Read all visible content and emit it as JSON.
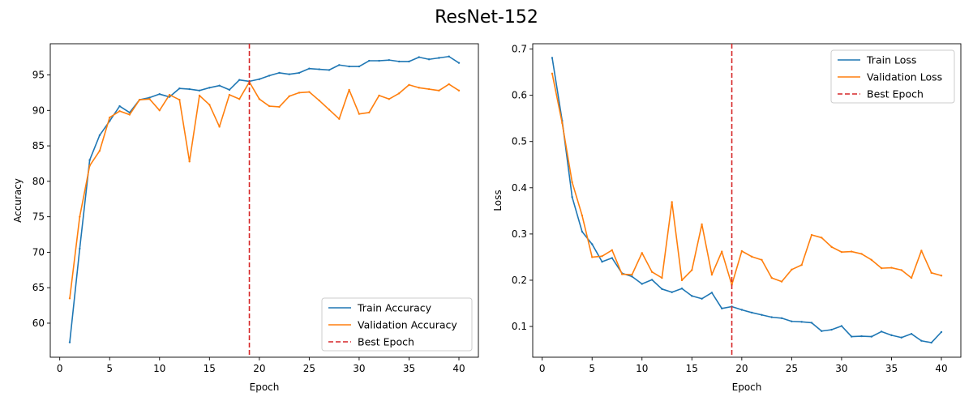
{
  "figure": {
    "title": "ResNet-152"
  },
  "chart_data": [
    {
      "type": "line",
      "xlabel": "Epoch",
      "ylabel": "Accuracy",
      "xlim": [
        -0.95,
        41.95
      ],
      "ylim": [
        55.2,
        99.4
      ],
      "xticks": [
        0,
        5,
        10,
        15,
        20,
        25,
        30,
        35,
        40
      ],
      "yticks": [
        60,
        65,
        70,
        75,
        80,
        85,
        90,
        95
      ],
      "grid": false,
      "legend_position": "lower-right",
      "x": [
        1,
        2,
        3,
        4,
        5,
        6,
        7,
        8,
        9,
        10,
        11,
        12,
        13,
        14,
        15,
        16,
        17,
        18,
        19,
        20,
        21,
        22,
        23,
        24,
        25,
        26,
        27,
        28,
        29,
        30,
        31,
        32,
        33,
        34,
        35,
        36,
        37,
        38,
        39,
        40
      ],
      "series": [
        {
          "name": "Train Accuracy",
          "color": "#1f77b4",
          "style": "solid",
          "values": [
            57.3,
            70.5,
            83.0,
            86.5,
            88.5,
            90.6,
            89.7,
            91.5,
            91.8,
            92.3,
            91.9,
            93.1,
            93.0,
            92.8,
            93.2,
            93.5,
            92.9,
            94.3,
            94.1,
            94.4,
            94.9,
            95.3,
            95.1,
            95.3,
            95.9,
            95.8,
            95.7,
            96.4,
            96.2,
            96.2,
            97.0,
            97.0,
            97.1,
            96.9,
            96.9,
            97.5,
            97.2,
            97.4,
            97.6,
            96.7
          ]
        },
        {
          "name": "Validation Accuracy",
          "color": "#ff7f0e",
          "style": "solid",
          "values": [
            63.5,
            75.0,
            82.2,
            84.3,
            89.0,
            89.9,
            89.4,
            91.5,
            91.6,
            90.0,
            92.2,
            91.5,
            82.8,
            92.1,
            90.8,
            87.7,
            92.2,
            91.6,
            94.0,
            91.6,
            90.6,
            90.5,
            92.0,
            92.5,
            92.6,
            91.4,
            90.1,
            88.8,
            92.9,
            89.5,
            89.7,
            92.1,
            91.6,
            92.4,
            93.6,
            93.2,
            93.0,
            92.8,
            93.7,
            92.8
          ]
        }
      ],
      "vlines": [
        {
          "name": "Best Epoch",
          "x": 19,
          "color": "#d62728",
          "style": "dashed"
        }
      ]
    },
    {
      "type": "line",
      "xlabel": "Epoch",
      "ylabel": "Loss",
      "xlim": [
        -0.95,
        41.95
      ],
      "ylim": [
        0.0335,
        0.7115
      ],
      "xticks": [
        0,
        5,
        10,
        15,
        20,
        25,
        30,
        35,
        40
      ],
      "yticks": [
        0.1,
        0.2,
        0.3,
        0.4,
        0.5,
        0.6,
        0.7
      ],
      "grid": false,
      "legend_position": "upper-right",
      "x": [
        1,
        2,
        3,
        4,
        5,
        6,
        7,
        8,
        9,
        10,
        11,
        12,
        13,
        14,
        15,
        16,
        17,
        18,
        19,
        20,
        21,
        22,
        23,
        24,
        25,
        26,
        27,
        28,
        29,
        30,
        31,
        32,
        33,
        34,
        35,
        36,
        37,
        38,
        39,
        40
      ],
      "series": [
        {
          "name": "Train Loss",
          "color": "#1f77b4",
          "style": "solid",
          "values": [
            0.681,
            0.545,
            0.38,
            0.305,
            0.278,
            0.24,
            0.248,
            0.215,
            0.208,
            0.192,
            0.201,
            0.181,
            0.174,
            0.182,
            0.166,
            0.16,
            0.173,
            0.139,
            0.143,
            0.136,
            0.13,
            0.125,
            0.12,
            0.118,
            0.111,
            0.11,
            0.108,
            0.09,
            0.093,
            0.101,
            0.078,
            0.079,
            0.078,
            0.089,
            0.081,
            0.076,
            0.084,
            0.069,
            0.065,
            0.088
          ]
        },
        {
          "name": "Validation Loss",
          "color": "#ff7f0e",
          "style": "solid",
          "values": [
            0.647,
            0.54,
            0.412,
            0.34,
            0.25,
            0.252,
            0.265,
            0.213,
            0.212,
            0.259,
            0.218,
            0.205,
            0.369,
            0.2,
            0.222,
            0.321,
            0.212,
            0.262,
            0.19,
            0.263,
            0.251,
            0.244,
            0.205,
            0.197,
            0.223,
            0.233,
            0.298,
            0.292,
            0.272,
            0.261,
            0.262,
            0.257,
            0.244,
            0.226,
            0.227,
            0.222,
            0.205,
            0.264,
            0.216,
            0.21
          ]
        }
      ],
      "vlines": [
        {
          "name": "Best Epoch",
          "x": 19,
          "color": "#d62728",
          "style": "dashed"
        }
      ]
    }
  ]
}
